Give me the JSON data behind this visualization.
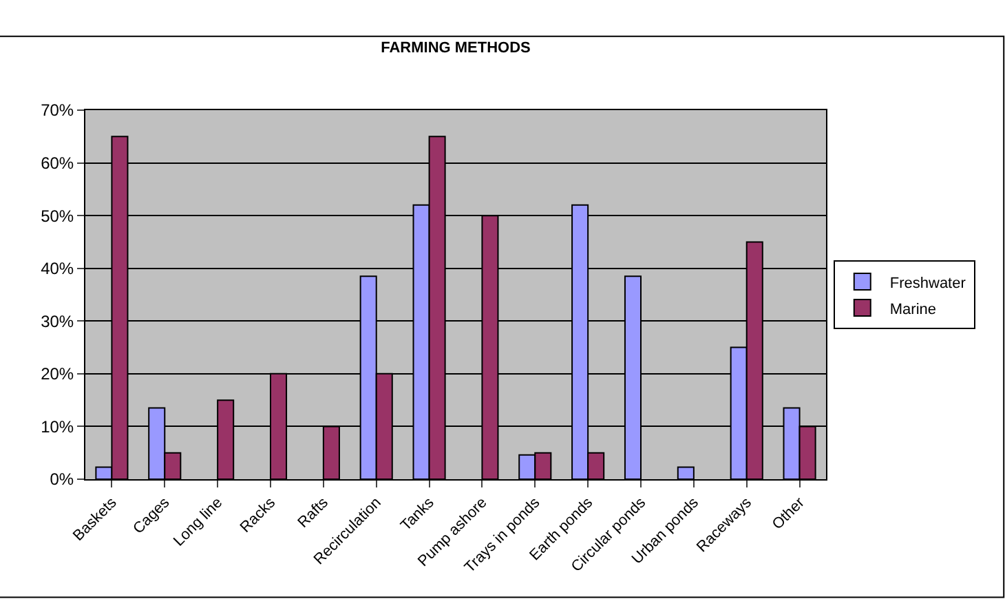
{
  "chart_data": {
    "type": "bar",
    "title": "FARMING METHODS",
    "categories": [
      "Baskets",
      "Cages",
      "Long line",
      "Racks",
      "Rafts",
      "Recirculation",
      "Tanks",
      "Pump ashore",
      "Trays in ponds",
      "Earth ponds",
      "Circular ponds",
      "Urban ponds",
      "Raceways",
      "Other"
    ],
    "series": [
      {
        "name": "Freshwater",
        "color": "#9999ff",
        "values": [
          2.3,
          13.5,
          null,
          null,
          null,
          38.5,
          52,
          null,
          4.6,
          52,
          38.5,
          2.3,
          25,
          13.5
        ]
      },
      {
        "name": "Marine",
        "color": "#993366",
        "values": [
          65,
          5,
          15,
          20,
          10,
          20,
          65,
          50,
          5,
          5,
          null,
          null,
          45,
          10
        ]
      }
    ],
    "ylim": [
      0,
      70
    ],
    "yticks": [
      {
        "value": 0,
        "label": "0%"
      },
      {
        "value": 10,
        "label": "10%"
      },
      {
        "value": 20,
        "label": "20%"
      },
      {
        "value": 30,
        "label": "30%"
      },
      {
        "value": 40,
        "label": "40%"
      },
      {
        "value": 50,
        "label": "50%"
      },
      {
        "value": 60,
        "label": "60%"
      },
      {
        "value": 70,
        "label": "70%"
      }
    ],
    "grid": "y",
    "legend": "right"
  }
}
